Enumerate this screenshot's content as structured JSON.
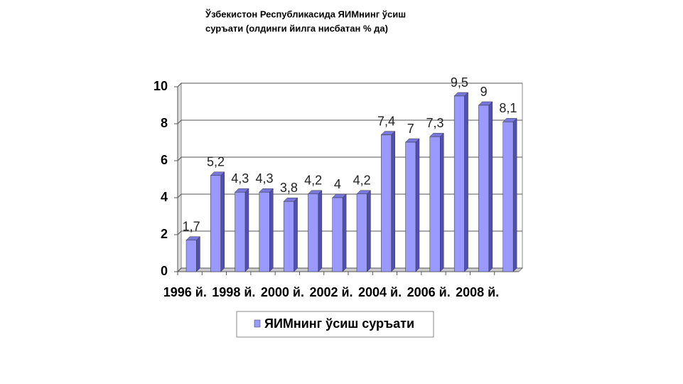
{
  "chart_data": {
    "type": "bar3d",
    "title": [
      "Ўзбекистон Республикасида  ЯИМнинг ўсиш",
      "суръати (олдинги йилга нисбатан % да)"
    ],
    "categories": [
      "1996 й.",
      null,
      "1998 й.",
      null,
      "2000 й.",
      null,
      "2002 й.",
      null,
      "2004 й.",
      null,
      "2006 й.",
      null,
      "2008 й.",
      null
    ],
    "series": [
      {
        "name": "ЯИМнинг ўсиш суръати",
        "color": "#9999ff",
        "values": [
          1.7,
          5.2,
          4.3,
          4.3,
          3.8,
          4.2,
          4,
          4.2,
          7.4,
          7,
          7.3,
          9.5,
          9,
          8.1
        ],
        "value_labels": [
          "1,7",
          "5,2",
          "4,3",
          "4,3",
          "3,8",
          "4,2",
          "4",
          "4,2",
          "7,4",
          "7",
          "7,3",
          "9,5",
          "9",
          "8,1"
        ]
      }
    ],
    "ylim": [
      0,
      10
    ],
    "yticks": [
      0,
      2,
      4,
      6,
      8,
      10
    ],
    "grid": true
  }
}
